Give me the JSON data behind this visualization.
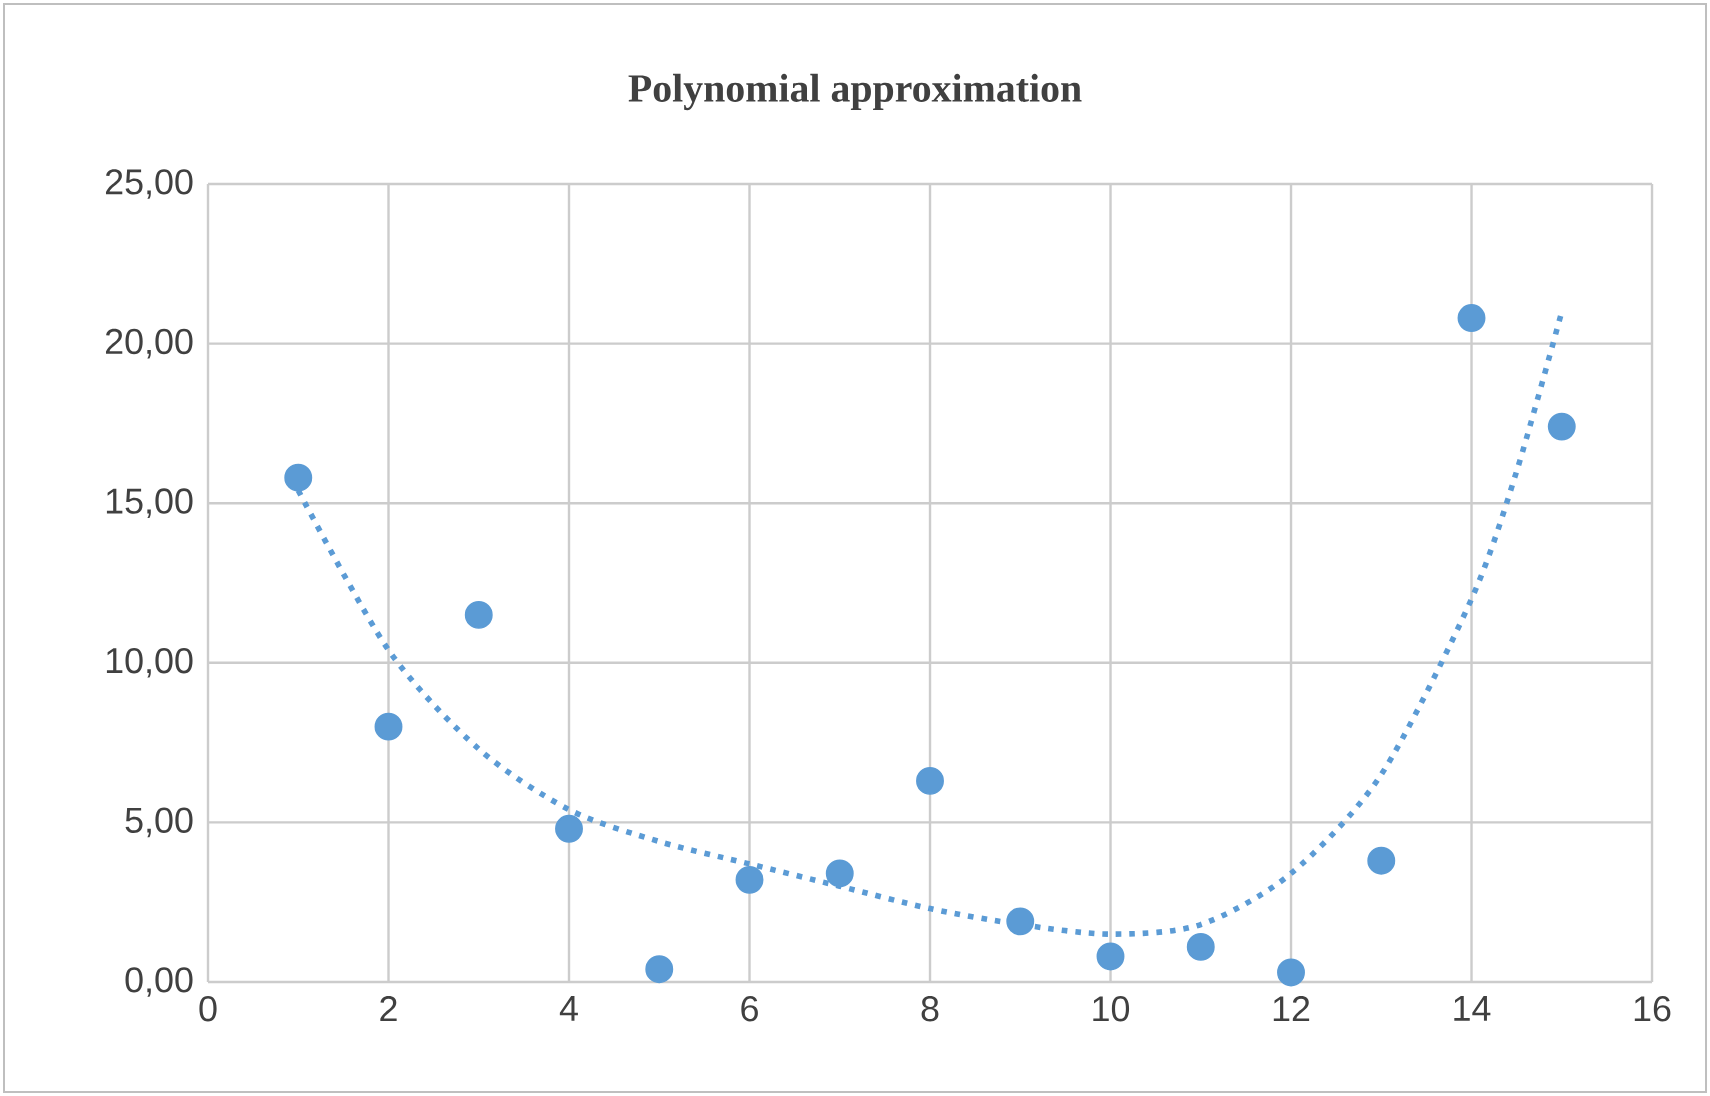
{
  "chart_data": {
    "type": "scatter",
    "title": "Polynomial approximation",
    "x": [
      1,
      2,
      3,
      4,
      5,
      6,
      7,
      8,
      9,
      10,
      11,
      12,
      13,
      14,
      15
    ],
    "series": [
      {
        "color": "#5b9bd5",
        "marker": "circle",
        "values": [
          15.8,
          8.0,
          11.5,
          4.8,
          0.4,
          3.2,
          3.4,
          6.3,
          1.9,
          0.8,
          1.1,
          0.3,
          3.8,
          20.8,
          17.4
        ]
      },
      {
        "type": "line",
        "color": "#5b9bd5",
        "marker": "none",
        "line_style": "dotted",
        "x": [
          1,
          2,
          3,
          4,
          5,
          6,
          7,
          8,
          9,
          10,
          11,
          12,
          13,
          14,
          14.5,
          15
        ],
        "values": [
          15.4,
          10.4,
          7.3,
          5.4,
          4.4,
          3.7,
          3.0,
          2.3,
          1.8,
          1.5,
          1.8,
          3.4,
          6.5,
          12.0,
          16.0,
          21.0
        ]
      }
    ],
    "xlim": [
      0,
      16
    ],
    "ylim": [
      0,
      25
    ],
    "xticks": [
      0,
      2,
      4,
      6,
      8,
      10,
      12,
      14,
      16
    ],
    "yticks": [
      {
        "value": 0,
        "label": "0,00"
      },
      {
        "value": 5,
        "label": "5,00"
      },
      {
        "value": 10,
        "label": "10,00"
      },
      {
        "value": 15,
        "label": "15,00"
      },
      {
        "value": 20,
        "label": "20,00"
      },
      {
        "value": 25,
        "label": "25,00"
      }
    ],
    "grid": true
  }
}
